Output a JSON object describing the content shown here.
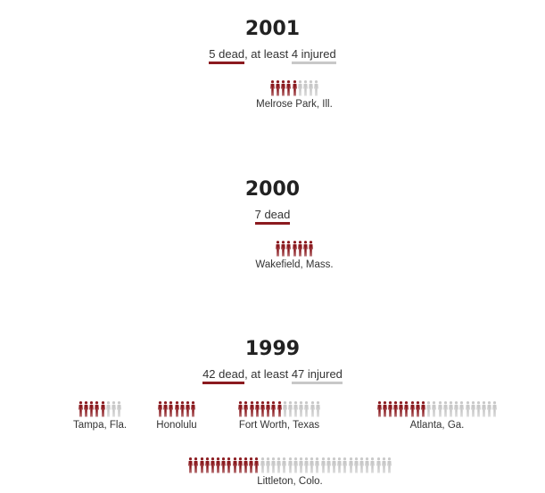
{
  "colors": {
    "dead": "#8b1a1f",
    "injured": "#c8c8c8"
  },
  "years": [
    {
      "year": "2001",
      "dead_text": "5 dead",
      "mid_text": ", at least ",
      "injured_text": "4 injured",
      "incidents": [
        {
          "location": "Melrose Park, Ill.",
          "dead": 5,
          "injured": 4
        }
      ]
    },
    {
      "year": "2000",
      "dead_text": "7 dead",
      "mid_text": "",
      "injured_text": "",
      "incidents": [
        {
          "location": "Wakefield, Mass.",
          "dead": 7,
          "injured": 0
        }
      ]
    },
    {
      "year": "1999",
      "dead_text": "42 dead",
      "mid_text": ", at least ",
      "injured_text": "47 injured",
      "incidents": [
        {
          "location": "Tampa, Fla.",
          "dead": 5,
          "injured": 3
        },
        {
          "location": "Honolulu",
          "dead": 7,
          "injured": 0
        },
        {
          "location": "Fort Worth, Texas",
          "dead": 8,
          "injured": 7
        },
        {
          "location": "Atlanta, Ga.",
          "dead": 9,
          "injured": 13
        },
        {
          "location": "Littleton, Colo.",
          "dead": 13,
          "injured": 24
        }
      ]
    }
  ]
}
